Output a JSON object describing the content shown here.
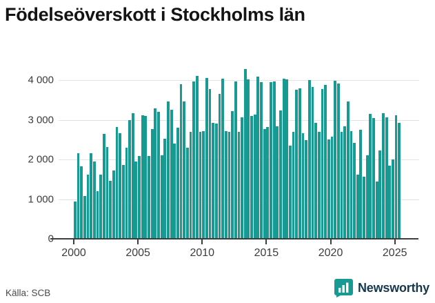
{
  "title": "Födelseöverskott i Stockholms län",
  "source": "Källa: SCB",
  "logo": {
    "text": "Newsworthy"
  },
  "colors": {
    "bar": "#169a91",
    "axis": "#3d3d3d",
    "gridline": "#e3e3e3",
    "title_text": "#141414",
    "tick_text": "#3c3c3c",
    "logo_text": "#16384d",
    "logo_icon": "#169a91"
  },
  "chart_data": {
    "type": "bar",
    "title": "Födelseöverskott i Stockholms län",
    "xlabel": "",
    "ylabel": "",
    "frequency": "quarterly",
    "x_start": "2000 Q1",
    "x_end": "2025 Q2",
    "ylim": [
      0,
      4400
    ],
    "grid": true,
    "y_ticks": [
      0,
      1000,
      2000,
      3000,
      4000
    ],
    "y_tick_labels": [
      "0",
      "1 000",
      "2 000",
      "3 000",
      "4 000"
    ],
    "x_tick_years": [
      2000,
      2005,
      2010,
      2015,
      2020,
      2025
    ],
    "x_tick_labels": [
      "2000",
      "2005",
      "2010",
      "2015",
      "2020",
      "2025"
    ],
    "series": [
      {
        "name": "Födelseöverskott",
        "values": [
          940,
          2150,
          1830,
          1080,
          1610,
          2150,
          1940,
          1200,
          1610,
          2650,
          2310,
          1470,
          1730,
          2820,
          2670,
          1870,
          2300,
          2990,
          3160,
          1940,
          2080,
          3110,
          3090,
          2090,
          2760,
          3280,
          3200,
          2110,
          2520,
          3470,
          3260,
          2400,
          2800,
          3900,
          3460,
          2300,
          2690,
          3970,
          4100,
          2690,
          2710,
          4050,
          3780,
          2920,
          2910,
          3650,
          4030,
          2720,
          2690,
          3210,
          3970,
          2690,
          3070,
          4280,
          4010,
          3100,
          3130,
          4080,
          3940,
          2760,
          2810,
          3940,
          3970,
          2840,
          3240,
          4040,
          4010,
          2340,
          2690,
          3750,
          3800,
          2660,
          2490,
          4000,
          3820,
          2930,
          2690,
          3780,
          3880,
          2500,
          2580,
          3980,
          3920,
          2690,
          2840,
          3470,
          2720,
          2410,
          1620,
          2750,
          1560,
          2110,
          3155,
          3040,
          1440,
          2230,
          3170,
          3070,
          1850,
          2000,
          3110,
          2920
        ]
      }
    ]
  }
}
